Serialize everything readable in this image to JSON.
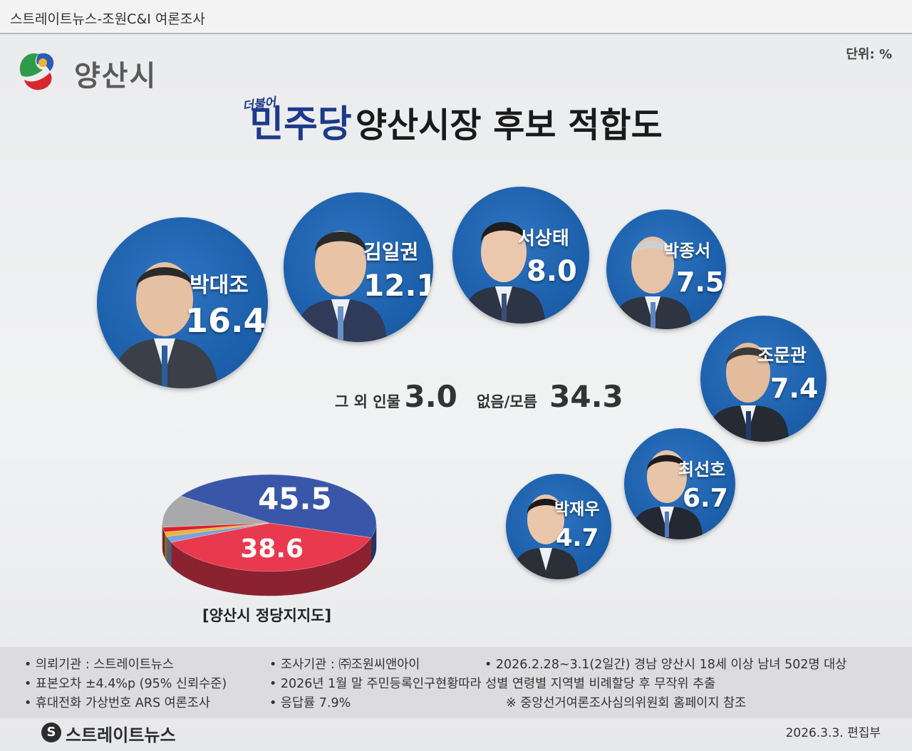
{
  "header": {
    "source": "스트레이트뉴스-조원C&I 여론조사"
  },
  "logo": {
    "city_name": "양산시"
  },
  "unit_label": "단위: %",
  "title": {
    "party_small": "더불어",
    "party": "민주당",
    "rest": "양산시장 후보 적합도"
  },
  "colors": {
    "bubble": "#1d61ad",
    "dem_blue": "#3a56a8",
    "ppp_red": "#e8394f",
    "gray": "#a9a9ab",
    "title_blue": "#1d3a8a"
  },
  "chart_data": [
    {
      "type": "bubble",
      "title": "민주당 양산시장 후보 적합도",
      "categories": [
        "박대조",
        "김일권",
        "서상태",
        "박종서",
        "조문관",
        "최선호",
        "박재우"
      ],
      "values": [
        16.4,
        12.1,
        8.0,
        7.5,
        7.4,
        6.7,
        4.7
      ],
      "labels": [
        "16.4",
        "12.1",
        "8.0",
        "7.5",
        "7.4",
        "6.7",
        "4.7"
      ],
      "extra": [
        {
          "label": "그 외 인물",
          "value": 3.0,
          "display": "3.0"
        },
        {
          "label": "없음/모름",
          "value": 34.3,
          "display": "34.3"
        }
      ],
      "unit": "%"
    },
    {
      "type": "pie",
      "title": "[양산시 정당지지도]",
      "slices": [
        {
          "value": 45.5,
          "display": "45.5",
          "color": "#3a56a8"
        },
        {
          "value": 38.6,
          "display": "38.6",
          "color": "#e8394f"
        },
        {
          "value": 2.0,
          "color": "#7fa2d6"
        },
        {
          "value": 1.5,
          "color": "#f2b134"
        },
        {
          "value": 1.6,
          "color": "#d9202a"
        },
        {
          "value": 10.8,
          "color": "#a9a9ab"
        }
      ]
    }
  ],
  "footer": {
    "items": [
      "• 의뢰기관 : 스트레이트뉴스",
      "• 조사기관 : ㈜조원씨앤아이",
      "• 2026.2.28~3.1(2일간) 경남 양산시 18세 이상 남녀 502명 대상",
      "• 표본오차 ±4.4%p (95% 신뢰수준)",
      "• 2026년 1월 말 주민등록인구현황따라 성별 연령별 지역별 비례할당 후 무작위 추출",
      "• 휴대전화 가상번호 ARS 여론조사",
      "• 응답률 7.9%",
      "※ 중앙선거여론조사심의위원회 홈페이지 참조"
    ],
    "brand": "스트레이트뉴스",
    "brand_mark": "S",
    "date": "2026.3.3. 편집부"
  }
}
